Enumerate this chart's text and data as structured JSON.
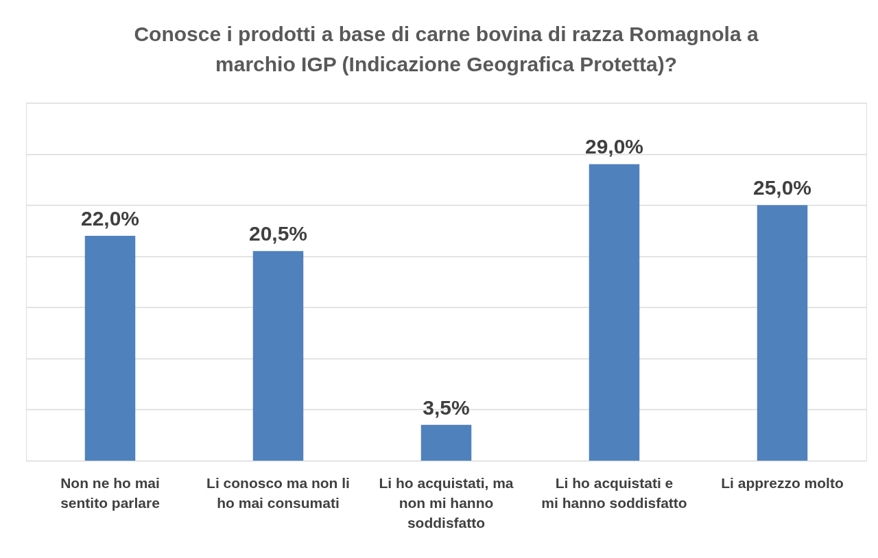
{
  "chart_data": {
    "type": "bar",
    "title": "Conosce i prodotti a base di carne bovina di razza Romagnola a marchio IGP (Indicazione Geografica Protetta)?",
    "categories": [
      "Non ne ho mai sentito parlare",
      "Li conosco ma non li ho mai consumati",
      "Li ho acquistati, ma non mi hanno soddisfatto",
      "Li ho acquistati e mi hanno soddisfatto",
      "Li apprezzo molto"
    ],
    "values": [
      22.0,
      20.5,
      3.5,
      29.0,
      25.0
    ],
    "value_labels": [
      "22,0%",
      "20,5%",
      "3,5%",
      "29,0%",
      "25,0%"
    ],
    "color": "#4f81bd",
    "ylim": [
      0,
      35
    ],
    "yticks": [
      {
        "value": 0,
        "label": null
      },
      {
        "value": 5,
        "label": null
      },
      {
        "value": 10,
        "label": null
      },
      {
        "value": 15,
        "label": null
      },
      {
        "value": 20,
        "label": null
      },
      {
        "value": 25,
        "label": null
      },
      {
        "value": 30,
        "label": null
      },
      {
        "value": 35,
        "label": null
      }
    ],
    "grid": "y",
    "tick_labels": "x"
  }
}
